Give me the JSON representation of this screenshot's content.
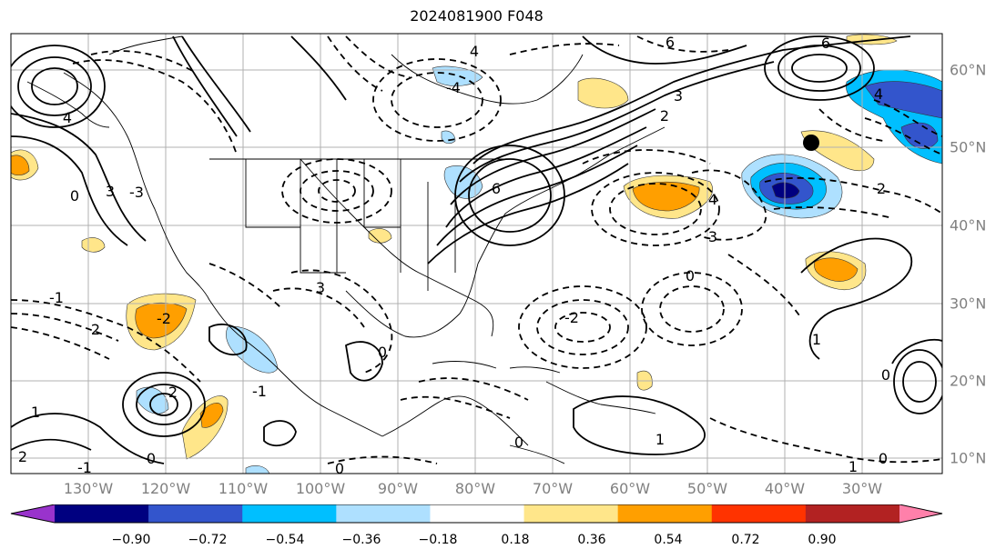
{
  "title": "2024081900 F048",
  "lon_labels": [
    "130°W",
    "120°W",
    "110°W",
    "100°W",
    "90°W",
    "80°W",
    "70°W",
    "60°W",
    "50°W",
    "40°W",
    "30°W"
  ],
  "lat_labels": [
    "60°N",
    "50°N",
    "40°N",
    "30°N",
    "20°N",
    "10°N"
  ],
  "colorbar": {
    "ticks": [
      "−0.90",
      "−0.72",
      "−0.54",
      "−0.36",
      "−0.18",
      "0.18",
      "0.36",
      "0.54",
      "0.72",
      "0.90"
    ],
    "colors": [
      "#9933cc",
      "#000080",
      "#3355cc",
      "#00bfff",
      "#aee0ff",
      "#ffffff",
      "#ffe68a",
      "#ff9f00",
      "#ff3300",
      "#b22222",
      "#ff80aa"
    ]
  },
  "contour_labels": [
    "6",
    "4",
    "3",
    "2",
    "1",
    "0",
    "-1",
    "-2",
    "-3",
    "-4"
  ]
}
